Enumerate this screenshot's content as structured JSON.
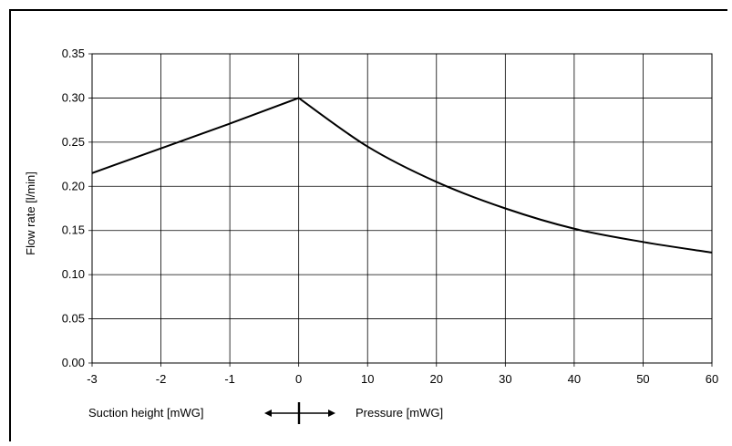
{
  "chart_data": {
    "type": "line",
    "title": "",
    "ylabel": "Flow rate [l/min]",
    "ylim": [
      0,
      0.35
    ],
    "yticks": [
      "0.00",
      "0.05",
      "0.10",
      "0.15",
      "0.20",
      "0.25",
      "0.30",
      "0.35"
    ],
    "xticks": [
      "-3",
      "-2",
      "-1",
      "0",
      "10",
      "20",
      "30",
      "40",
      "50",
      "60"
    ],
    "x_axis_note": "piecewise axis: suction height (mWG) on the left of 0, pressure (mWG) on the right",
    "suction_label": "Suction height [mWG]",
    "pressure_label": "Pressure [mWG]",
    "grid": true,
    "series": [
      {
        "suction": {
          "x": [
            -3,
            -2,
            -1,
            0
          ],
          "y": [
            0.215,
            0.243,
            0.271,
            0.3
          ]
        },
        "pressure": {
          "x": [
            0,
            10,
            20,
            30,
            40,
            50,
            60
          ],
          "y": [
            0.3,
            0.245,
            0.205,
            0.175,
            0.152,
            0.137,
            0.125
          ]
        }
      }
    ]
  }
}
